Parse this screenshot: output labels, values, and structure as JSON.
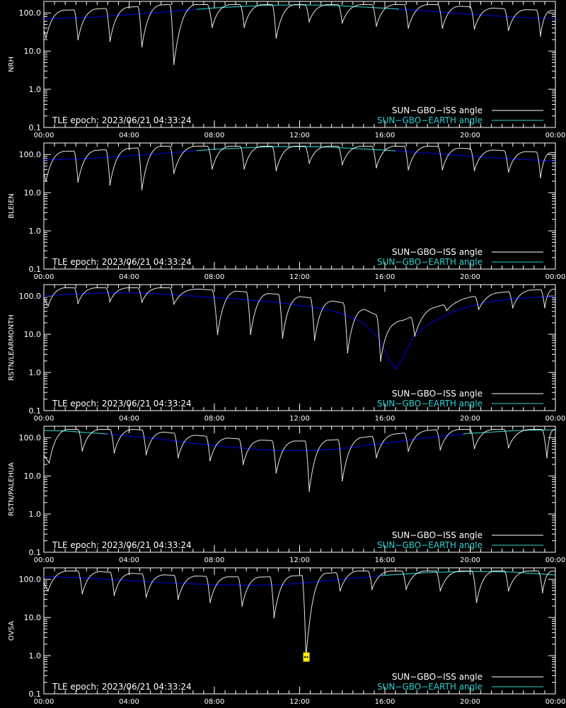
{
  "meta": {
    "tle_epoch_text": "TLE epoch: 2023/06/21 04:33:24",
    "legend": {
      "iss_label": "SUN−GBO−ISS angle",
      "earth_label": "SUN−GBO−EARTH angle"
    },
    "colors": {
      "background": "#000000",
      "axis": "#ffffff",
      "iss_line": "#ffffff",
      "earth_line_high": "#30d0d0",
      "earth_line_low": "#0000d8",
      "marker": "#ffee00"
    }
  },
  "chart_data": [
    {
      "type": "line",
      "ylabel": "NRH",
      "x_ticks": [
        "00:00",
        "04:00",
        "08:00",
        "12:00",
        "16:00",
        "20:00",
        "00:00"
      ],
      "y_ticks": [
        "0.1",
        "1.0",
        "10.0",
        "100.0"
      ],
      "xlim_hours": [
        0,
        24
      ],
      "ylim": [
        0.1,
        200
      ],
      "y_scale": "log",
      "legend_position": "bottom-right",
      "series": [
        {
          "name": "SUN−GBO−EARTH angle",
          "x_hours": [
            0,
            2,
            4,
            6,
            8,
            10,
            11,
            12,
            13,
            14,
            16,
            18,
            20,
            22,
            24
          ],
          "values": [
            70,
            76,
            90,
            110,
            135,
            155,
            160,
            162,
            160,
            152,
            133,
            112,
            92,
            78,
            70
          ]
        },
        {
          "name": "SUN−GBO−ISS angle",
          "dips": [
            {
              "t": 0.1,
              "min": 22
            },
            {
              "t": 1.6,
              "min": 20
            },
            {
              "t": 3.1,
              "min": 18
            },
            {
              "t": 4.6,
              "min": 13
            },
            {
              "t": 6.1,
              "min": 4.5
            },
            {
              "t": 7.9,
              "min": 42
            },
            {
              "t": 9.4,
              "min": 42
            },
            {
              "t": 10.9,
              "min": 22
            },
            {
              "t": 12.45,
              "min": 60
            },
            {
              "t": 14.0,
              "min": 55
            },
            {
              "t": 15.6,
              "min": 45
            },
            {
              "t": 17.1,
              "min": 40
            },
            {
              "t": 18.7,
              "min": 40
            },
            {
              "t": 20.2,
              "min": 38
            },
            {
              "t": 21.8,
              "min": 35
            },
            {
              "t": 23.3,
              "min": 25
            }
          ]
        }
      ]
    },
    {
      "type": "line",
      "ylabel": "BLEIEN",
      "x_ticks": [
        "00:00",
        "04:00",
        "08:00",
        "12:00",
        "16:00",
        "20:00",
        "00:00"
      ],
      "y_ticks": [
        "0.1",
        "1.0",
        "10.0",
        "100.0"
      ],
      "xlim_hours": [
        0,
        24
      ],
      "ylim": [
        0.1,
        200
      ],
      "y_scale": "log",
      "legend_position": "bottom-right",
      "series": [
        {
          "name": "SUN−GBO−EARTH angle",
          "x_hours": [
            0,
            2,
            4,
            6,
            8,
            10,
            11,
            12,
            13,
            14,
            16,
            18,
            20,
            22,
            24
          ],
          "values": [
            72,
            78,
            92,
            112,
            137,
            155,
            160,
            161,
            158,
            150,
            130,
            110,
            90,
            76,
            68
          ]
        },
        {
          "name": "SUN−GBO−ISS angle",
          "dips": [
            {
              "t": 0.1,
              "min": 20
            },
            {
              "t": 1.6,
              "min": 19
            },
            {
              "t": 3.1,
              "min": 16
            },
            {
              "t": 4.6,
              "min": 12
            },
            {
              "t": 6.1,
              "min": 32
            },
            {
              "t": 7.9,
              "min": 42
            },
            {
              "t": 9.4,
              "min": 42
            },
            {
              "t": 10.9,
              "min": 38
            },
            {
              "t": 12.45,
              "min": 60
            },
            {
              "t": 14.0,
              "min": 55
            },
            {
              "t": 15.6,
              "min": 45
            },
            {
              "t": 17.1,
              "min": 40
            },
            {
              "t": 18.7,
              "min": 40
            },
            {
              "t": 20.2,
              "min": 38
            },
            {
              "t": 21.8,
              "min": 35
            },
            {
              "t": 23.3,
              "min": 25
            }
          ]
        }
      ]
    },
    {
      "type": "line",
      "ylabel": "RSTN/LEARMONTH",
      "x_ticks": [
        "00:00",
        "04:00",
        "08:00",
        "12:00",
        "16:00",
        "20:00",
        "00:00"
      ],
      "y_ticks": [
        "0.1",
        "1.0",
        "10.0",
        "100.0"
      ],
      "xlim_hours": [
        0,
        24
      ],
      "ylim": [
        0.1,
        200
      ],
      "y_scale": "log",
      "legend_position": "bottom-right",
      "series": [
        {
          "name": "SUN−GBO−EARTH angle",
          "x_hours": [
            0,
            2,
            3.5,
            5,
            7,
            9,
            11,
            13,
            14,
            15,
            15.7,
            16.2,
            16.5,
            16.8,
            17.3,
            18,
            19,
            20,
            21,
            22,
            23,
            24
          ],
          "values": [
            100,
            118,
            122,
            118,
            100,
            85,
            68,
            48,
            35,
            20,
            8,
            2.2,
            1.2,
            2.2,
            8,
            18,
            35,
            55,
            72,
            85,
            93,
            98
          ]
        },
        {
          "name": "SUN−GBO−ISS angle",
          "dips": [
            {
              "t": 0.2,
              "min": 55
            },
            {
              "t": 1.6,
              "min": 65
            },
            {
              "t": 3.1,
              "min": 72
            },
            {
              "t": 4.6,
              "min": 70
            },
            {
              "t": 6.1,
              "min": 62
            },
            {
              "t": 8.15,
              "min": 10
            },
            {
              "t": 9.7,
              "min": 10
            },
            {
              "t": 11.2,
              "min": 8
            },
            {
              "t": 12.7,
              "min": 7
            },
            {
              "t": 14.25,
              "min": 3.3
            },
            {
              "t": 15.8,
              "min": 2.0
            },
            {
              "t": 17.4,
              "min": 9
            },
            {
              "t": 18.9,
              "min": 42
            },
            {
              "t": 20.4,
              "min": 45
            },
            {
              "t": 22.0,
              "min": 50
            },
            {
              "t": 23.5,
              "min": 50
            }
          ]
        }
      ]
    },
    {
      "type": "line",
      "ylabel": "RSTN/PALEHUA",
      "x_ticks": [
        "00:00",
        "04:00",
        "08:00",
        "12:00",
        "16:00",
        "20:00",
        "00:00"
      ],
      "y_ticks": [
        "0.1",
        "1.0",
        "10.0",
        "100.0"
      ],
      "xlim_hours": [
        0,
        24
      ],
      "ylim": [
        0.1,
        200
      ],
      "y_scale": "log",
      "legend_position": "bottom-right",
      "series": [
        {
          "name": "SUN−GBO−EARTH angle",
          "x_hours": [
            0,
            1,
            3,
            5,
            7,
            9,
            11,
            12.5,
            14,
            16,
            18,
            20,
            22,
            23,
            24
          ],
          "values": [
            155,
            150,
            125,
            98,
            72,
            55,
            46,
            46,
            52,
            72,
            100,
            130,
            152,
            158,
            160
          ]
        },
        {
          "name": "SUN−GBO−ISS angle",
          "dips": [
            {
              "t": 0.25,
              "min": 22
            },
            {
              "t": 1.8,
              "min": 45
            },
            {
              "t": 3.3,
              "min": 40
            },
            {
              "t": 4.8,
              "min": 36
            },
            {
              "t": 6.3,
              "min": 30
            },
            {
              "t": 7.8,
              "min": 25
            },
            {
              "t": 9.35,
              "min": 20
            },
            {
              "t": 10.9,
              "min": 12
            },
            {
              "t": 12.45,
              "min": 4
            },
            {
              "t": 14.0,
              "min": 7.5
            },
            {
              "t": 15.6,
              "min": 30
            },
            {
              "t": 17.1,
              "min": 45
            },
            {
              "t": 18.6,
              "min": 48
            },
            {
              "t": 20.2,
              "min": 52
            },
            {
              "t": 21.8,
              "min": 55
            },
            {
              "t": 23.6,
              "min": 30
            }
          ]
        }
      ]
    },
    {
      "type": "line",
      "ylabel": "OVSA",
      "x_ticks": [
        "00:00",
        "04:00",
        "08:00",
        "12:00",
        "16:00",
        "20:00",
        "00:00"
      ],
      "y_ticks": [
        "0.1",
        "1.0",
        "10.0",
        "100.0"
      ],
      "xlim_hours": [
        0,
        24
      ],
      "ylim": [
        0.1,
        200
      ],
      "y_scale": "log",
      "legend_position": "bottom-right",
      "marker": {
        "x_hours": 12.3,
        "value": 0.9
      },
      "series": [
        {
          "name": "SUN−GBO−EARTH angle",
          "x_hours": [
            0,
            2,
            4,
            6,
            8,
            10,
            11,
            12,
            14,
            16,
            18,
            20,
            22,
            24
          ],
          "values": [
            120,
            108,
            92,
            80,
            72,
            70,
            72,
            78,
            100,
            128,
            150,
            162,
            155,
            130
          ]
        },
        {
          "name": "SUN−GBO−ISS angle",
          "dips": [
            {
              "t": 0.2,
              "min": 50
            },
            {
              "t": 1.8,
              "min": 42
            },
            {
              "t": 3.3,
              "min": 38
            },
            {
              "t": 4.8,
              "min": 34
            },
            {
              "t": 6.3,
              "min": 30
            },
            {
              "t": 7.8,
              "min": 25
            },
            {
              "t": 9.3,
              "min": 20
            },
            {
              "t": 10.8,
              "min": 10
            },
            {
              "t": 12.3,
              "min": 0.9
            },
            {
              "t": 13.9,
              "min": 50
            },
            {
              "t": 15.4,
              "min": 55
            },
            {
              "t": 17.0,
              "min": 55
            },
            {
              "t": 18.6,
              "min": 50
            },
            {
              "t": 20.3,
              "min": 25
            },
            {
              "t": 21.8,
              "min": 50
            },
            {
              "t": 23.4,
              "min": 45
            }
          ]
        }
      ]
    }
  ]
}
